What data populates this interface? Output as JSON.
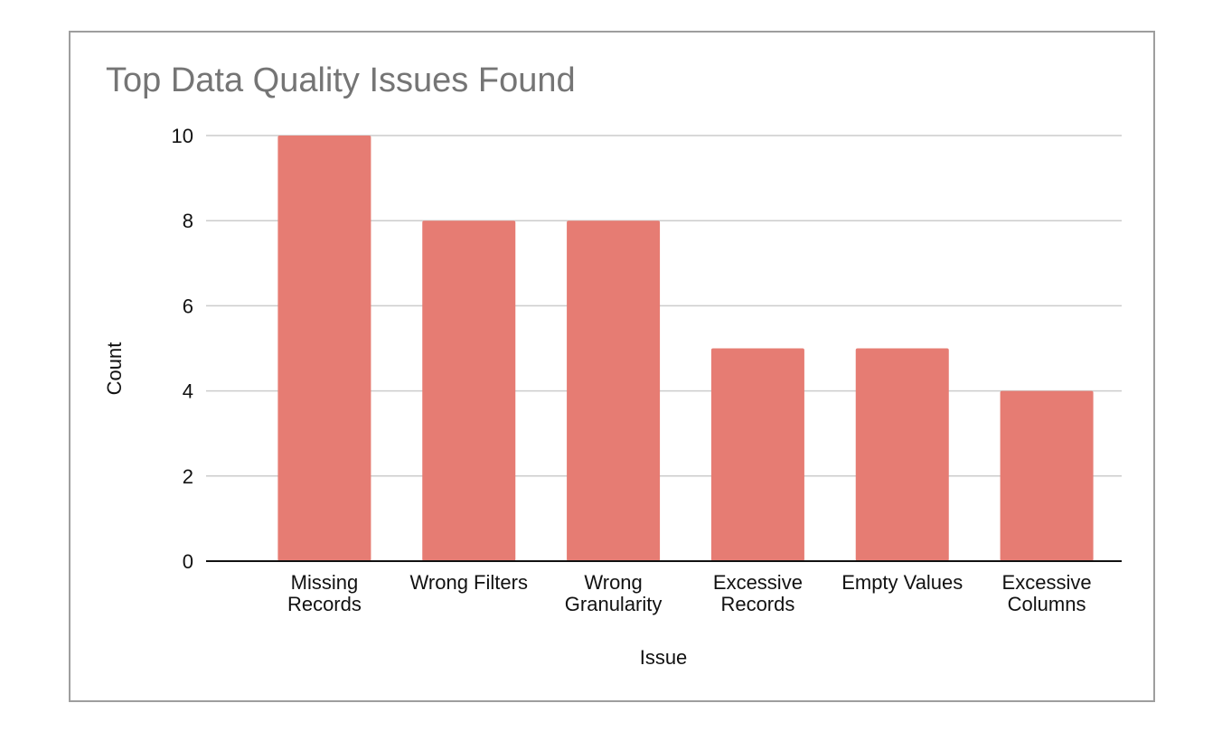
{
  "chart_data": {
    "type": "bar",
    "title": "Top Data Quality Issues Found",
    "xlabel": "Issue",
    "ylabel": "Count",
    "categories": [
      [
        "Missing",
        "Records"
      ],
      [
        "Wrong Filters"
      ],
      [
        "Wrong",
        "Granularity"
      ],
      [
        "Excessive",
        "Records"
      ],
      [
        "Empty Values"
      ],
      [
        "Excessive",
        "Columns"
      ]
    ],
    "values": [
      10,
      8,
      8,
      5,
      5,
      4
    ],
    "ylim": [
      0,
      10
    ],
    "yticks": [
      "0",
      "2",
      "4",
      "6",
      "8",
      "10"
    ],
    "grid": true,
    "legend": "none",
    "colors": {
      "bar": "#e67c73",
      "grid": "#cccccc",
      "axis": "#111111",
      "title": "#757575",
      "frame": "#9e9e9e"
    }
  }
}
